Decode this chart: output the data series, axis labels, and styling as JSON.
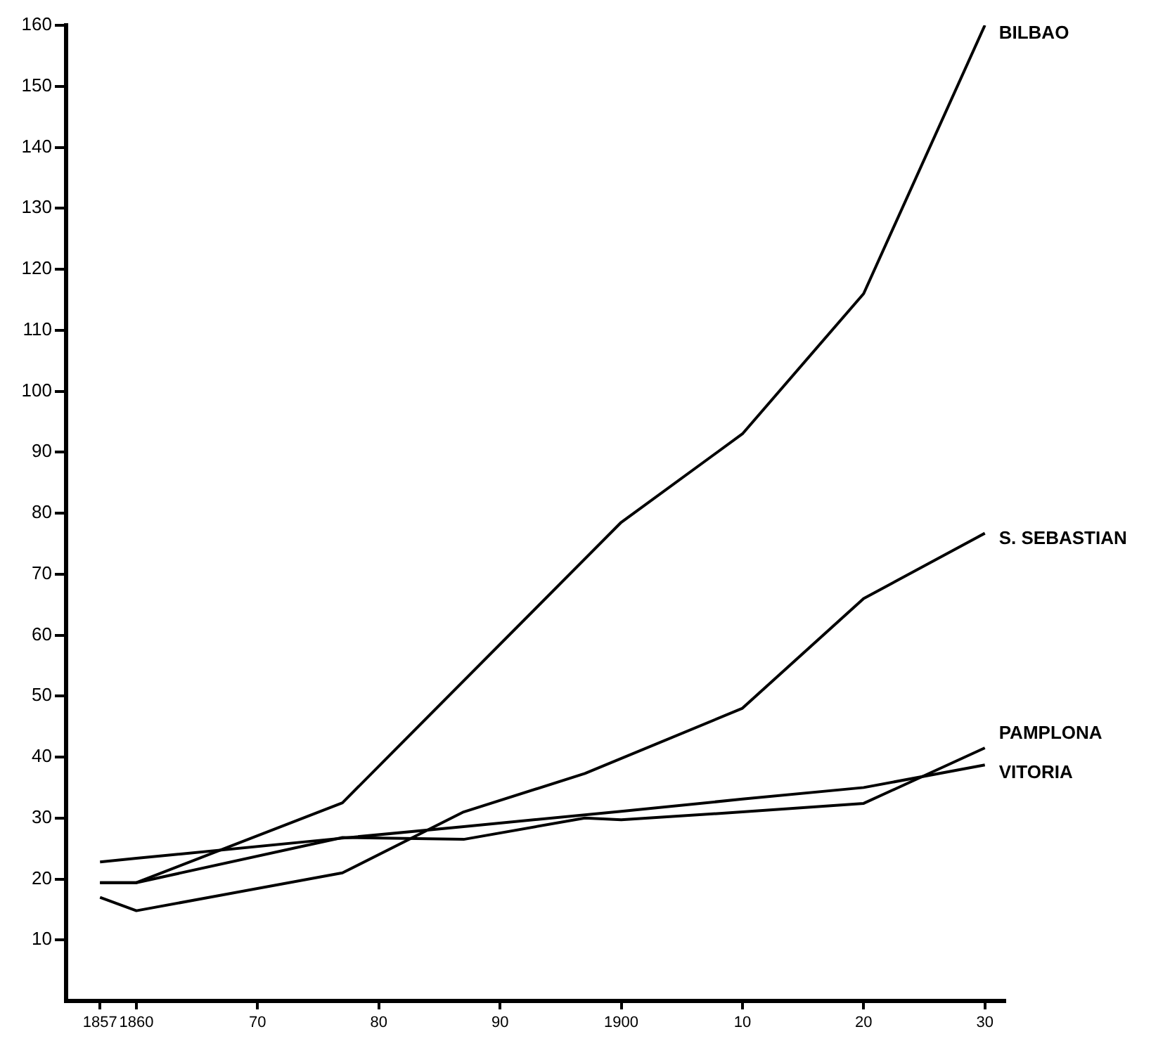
{
  "chart_data": {
    "type": "line",
    "xlim": [
      1854.2,
      1931.7
    ],
    "ylim": [
      0,
      160
    ],
    "xticks": [
      1857,
      1860,
      {
        "value": 1870,
        "label": "70"
      },
      {
        "value": 1880,
        "label": "80"
      },
      {
        "value": 1890,
        "label": "90"
      },
      1900,
      {
        "value": 1910,
        "label": "10"
      },
      {
        "value": 1920,
        "label": "20"
      },
      {
        "value": 1930,
        "label": "30"
      }
    ],
    "yticks": [
      10,
      20,
      30,
      40,
      50,
      60,
      70,
      80,
      90,
      100,
      110,
      120,
      130,
      140,
      150,
      160
    ],
    "grid": false,
    "legend": false,
    "marker": "none",
    "line_style": "solid",
    "series": [
      {
        "name": "BILBAO",
        "color": "#000000",
        "x": [
          1857,
          1860,
          1877,
          1900,
          1910,
          1920,
          1930
        ],
        "values": [
          19.4,
          19.4,
          32.5,
          78.5,
          93,
          116,
          160
        ]
      },
      {
        "name": "S. SEBASTIAN",
        "color": "#000000",
        "x": [
          1857,
          1860,
          1877,
          1887,
          1897,
          1910,
          1920,
          1930
        ],
        "values": [
          17,
          14.8,
          21,
          31,
          37.3,
          48,
          66,
          76.7
        ]
      },
      {
        "name": "PAMPLONA",
        "color": "#000000",
        "x": [
          1857,
          1860,
          1877,
          1887,
          1897,
          1900,
          1910,
          1920,
          1930
        ],
        "values": [
          19.4,
          19.4,
          26.8,
          26.5,
          30,
          29.7,
          31,
          32.4,
          41.5
        ]
      },
      {
        "name": "VITORIA",
        "color": "#000000",
        "x": [
          1857,
          1860,
          1877,
          1887,
          1900,
          1910,
          1920,
          1930
        ],
        "values": [
          22.8,
          23.4,
          26.7,
          28.6,
          31.1,
          33.1,
          35,
          38.7
        ]
      }
    ]
  }
}
